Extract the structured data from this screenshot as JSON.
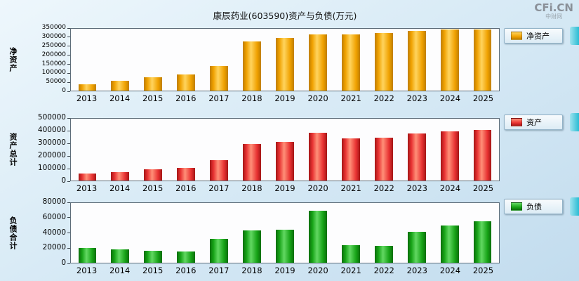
{
  "title": "康辰药业(603590)资产与负债(万元)",
  "watermark": {
    "brand": "CFi.CN",
    "sub": "中财网"
  },
  "chart_data": [
    {
      "type": "bar",
      "name": "net-assets",
      "title": "净资产",
      "ylabel": "净资产",
      "legend": "净资产",
      "categories": [
        "2013",
        "2014",
        "2015",
        "2016",
        "2017",
        "2018",
        "2019",
        "2020",
        "2021",
        "2022",
        "2023",
        "2024",
        "2025"
      ],
      "values": [
        35000,
        55000,
        75000,
        90000,
        140000,
        280000,
        300000,
        320000,
        320000,
        328000,
        337000,
        345000,
        346000
      ],
      "ylim": [
        0,
        350000
      ],
      "yticks": [
        0,
        50000,
        100000,
        150000,
        200000,
        250000,
        300000,
        350000
      ],
      "grid": false,
      "legend_position": "right",
      "colors": {
        "base": "#f0a202",
        "light": "#ffd45e",
        "dark": "#bf7e00"
      }
    },
    {
      "type": "bar",
      "name": "total-assets",
      "title": "资产",
      "ylabel": "资产总计",
      "legend": "资产",
      "categories": [
        "2013",
        "2014",
        "2015",
        "2016",
        "2017",
        "2018",
        "2019",
        "2020",
        "2021",
        "2022",
        "2023",
        "2024",
        "2025"
      ],
      "values": [
        55000,
        70000,
        90000,
        105000,
        165000,
        295000,
        315000,
        385000,
        340000,
        345000,
        378000,
        395000,
        410000
      ],
      "ylim": [
        0,
        500000
      ],
      "yticks": [
        0,
        100000,
        200000,
        300000,
        400000,
        500000
      ],
      "grid": false,
      "legend_position": "right",
      "colors": {
        "base": "#e83232",
        "light": "#ff9078",
        "dark": "#a31616"
      }
    },
    {
      "type": "bar",
      "name": "liabilities",
      "title": "负债",
      "ylabel": "负债合计",
      "legend": "负债",
      "categories": [
        "2013",
        "2014",
        "2015",
        "2016",
        "2017",
        "2018",
        "2019",
        "2020",
        "2021",
        "2022",
        "2023",
        "2024",
        "2025"
      ],
      "values": [
        20000,
        18000,
        16000,
        15000,
        32000,
        43000,
        44000,
        70000,
        24000,
        23000,
        41000,
        50000,
        56000
      ],
      "ylim": [
        0,
        80000
      ],
      "yticks": [
        0,
        20000,
        40000,
        60000,
        80000
      ],
      "grid": false,
      "legend_position": "right",
      "colors": {
        "base": "#17a317",
        "light": "#62d862",
        "dark": "#0b6e0b"
      }
    }
  ]
}
